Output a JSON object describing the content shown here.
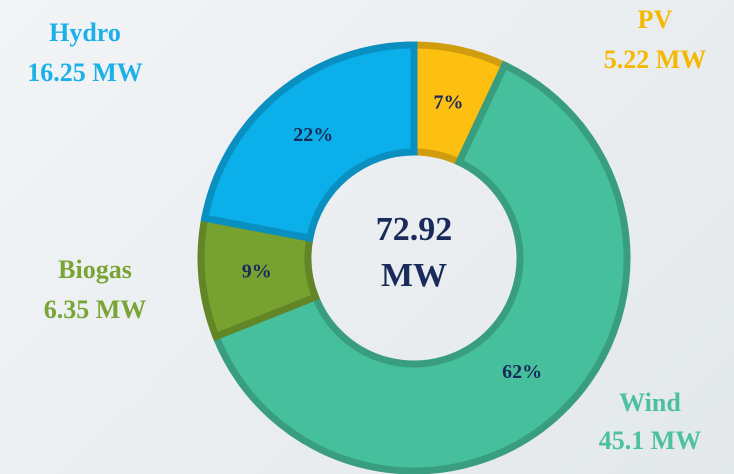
{
  "chart_data": {
    "type": "pie",
    "donut": true,
    "categories": [
      "PV",
      "Wind",
      "Biogas",
      "Hydro"
    ],
    "values": [
      7,
      62,
      9,
      22
    ],
    "value_labels": [
      "7%",
      "62%",
      "9%",
      "22%"
    ],
    "colors": [
      "#fdbf10",
      "#45bf9c",
      "#78a22f",
      "#0bb0ea"
    ],
    "label_colors": [
      "#f5b800",
      "#4cc0a0",
      "#7aa536",
      "#1cb0e8"
    ],
    "power_labels": [
      "5.22 MW",
      "45.1 MW",
      "6.35 MW",
      "16.25 MW"
    ],
    "center_label": [
      "72.92",
      "MW"
    ]
  }
}
